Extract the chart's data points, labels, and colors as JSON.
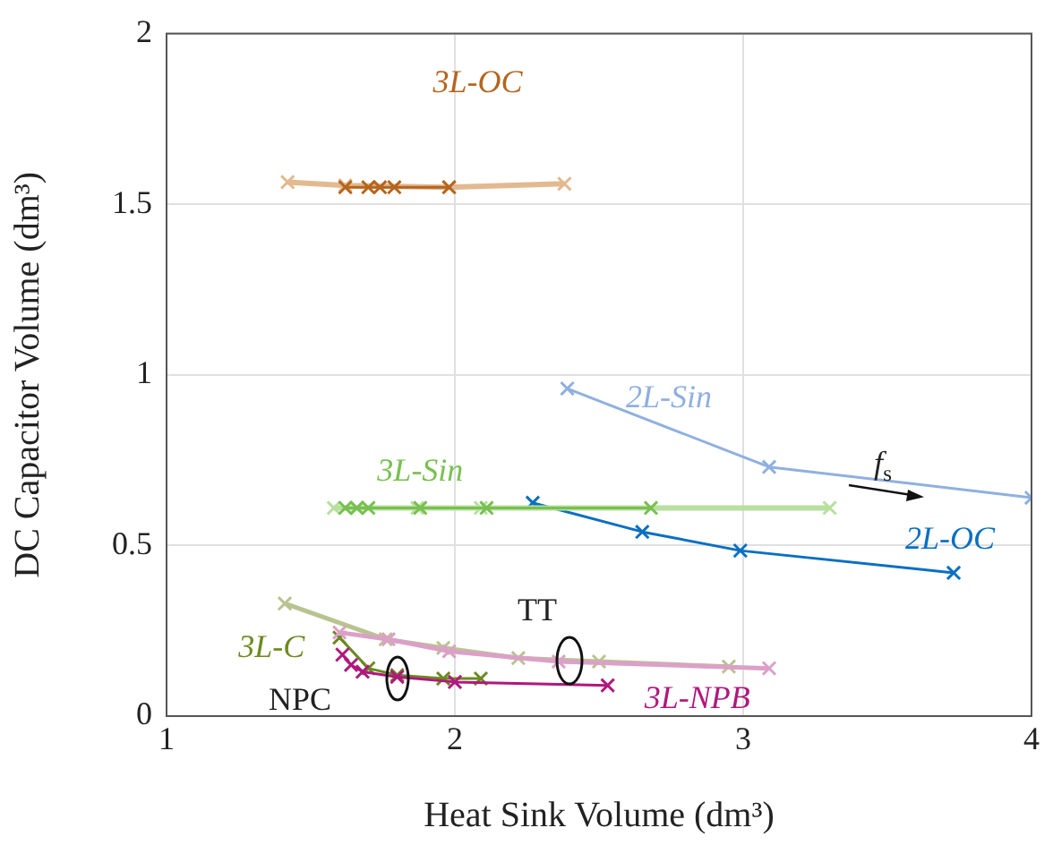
{
  "chart_data": {
    "type": "line",
    "xlabel": "Heat Sink Volume (dm³)",
    "ylabel": "DC Capacitor Volume (dm³)",
    "xlim": [
      1,
      4
    ],
    "xticks": [
      1,
      2,
      3,
      4
    ],
    "ylim": [
      0,
      2
    ],
    "yticks": [
      0,
      0.5,
      1,
      1.5,
      2
    ],
    "grid": true,
    "legend": false,
    "marker": "cross",
    "line_style": "solid",
    "series": [
      {
        "color": "#e3b98f",
        "x": [
          1.42,
          1.62,
          1.98,
          2.38
        ],
        "values": [
          1.565,
          1.555,
          1.55,
          1.56
        ]
      },
      {
        "name": "3L-OC",
        "color": "#b5651d",
        "x": [
          1.62,
          1.7,
          1.74,
          1.79,
          1.98
        ],
        "values": [
          1.55,
          1.55,
          1.55,
          1.55,
          1.55
        ]
      },
      {
        "name": "2L-Sin",
        "color": "#8fb0e0",
        "x": [
          2.39,
          3.09,
          4.0
        ],
        "values": [
          0.96,
          0.73,
          0.64
        ]
      },
      {
        "name": "2L-OC",
        "color": "#0a6fc2",
        "x": [
          2.27,
          2.65,
          2.99,
          3.73
        ],
        "values": [
          0.625,
          0.54,
          0.485,
          0.42
        ]
      },
      {
        "color": "#b8e0a0",
        "x": [
          1.58,
          1.66,
          1.87,
          2.09,
          3.3
        ],
        "values": [
          0.61,
          0.61,
          0.61,
          0.61,
          0.61
        ]
      },
      {
        "name": "3L-Sin",
        "color": "#78c050",
        "x": [
          1.62,
          1.66,
          1.7,
          1.88,
          2.11,
          2.68
        ],
        "values": [
          0.61,
          0.61,
          0.61,
          0.61,
          0.61,
          0.61
        ]
      },
      {
        "color": "#b8c490",
        "x": [
          1.41,
          1.76,
          1.96,
          2.22,
          2.5,
          2.95
        ],
        "values": [
          0.33,
          0.225,
          0.2,
          0.17,
          0.16,
          0.145
        ]
      },
      {
        "name": "3L-C",
        "color": "#6b8a1f",
        "x": [
          1.6,
          1.7,
          1.8,
          1.96,
          2.09
        ],
        "values": [
          0.23,
          0.14,
          0.12,
          0.11,
          0.11
        ]
      },
      {
        "color": "#dca0c8",
        "x": [
          1.6,
          1.77,
          1.98,
          2.36,
          3.09
        ],
        "values": [
          0.245,
          0.225,
          0.19,
          0.16,
          0.14
        ]
      },
      {
        "name": "3L-NPB",
        "color": "#b0187e",
        "x": [
          1.61,
          1.64,
          1.68,
          1.8,
          2.0,
          2.53
        ],
        "values": [
          0.18,
          0.15,
          0.13,
          0.115,
          0.1,
          0.09
        ]
      }
    ],
    "annotations": [
      "f$_{s}$",
      "TT",
      "NPC"
    ]
  }
}
